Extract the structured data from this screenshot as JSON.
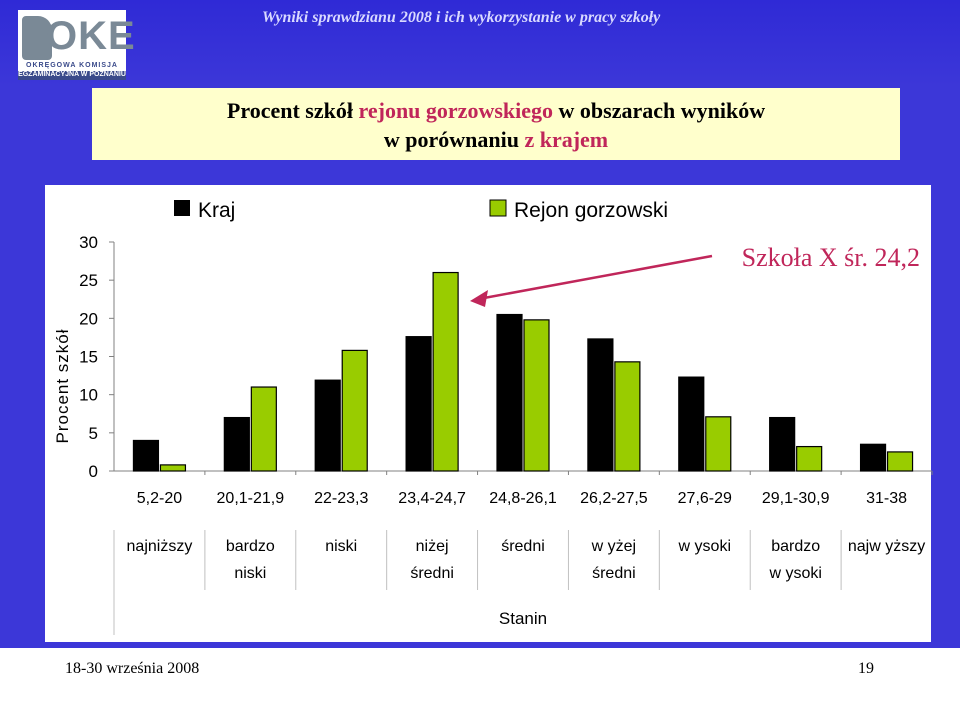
{
  "header": {
    "title": "Wyniki sprawdzianu  2008 i ich wykorzystanie w pracy szkoły",
    "logo_text": "OKE",
    "logo_line1": "OKRĘGOWA KOMISJA",
    "logo_line2": "EGZAMINACYJNA W POZNANIU"
  },
  "slide_title": {
    "line1_a": "Procent szkół ",
    "line1_b": "rejonu gorzowskiego",
    "line1_c": " w obszarach wyników",
    "line2_a": "w porównaniu ",
    "line2_b": "z krajem"
  },
  "chart_data": {
    "type": "bar",
    "ylabel": "Procent szkół",
    "xlabel": "Stanin",
    "ylim": [
      0,
      30
    ],
    "yticks": [
      0,
      5,
      10,
      15,
      20,
      25,
      30
    ],
    "grid": false,
    "legend_position": "top",
    "categories": [
      "5,2-20",
      "20,1-21,9",
      "22-23,3",
      "23,4-24,7",
      "24,8-26,1",
      "26,2-27,5",
      "27,6-29",
      "29,1-30,9",
      "31-38"
    ],
    "stanin_labels": [
      [
        "najniższy"
      ],
      [
        "bardzo",
        "niski"
      ],
      [
        "niski"
      ],
      [
        "niżej",
        "średni"
      ],
      [
        "średni"
      ],
      [
        "w yżej",
        "średni"
      ],
      [
        "w ysoki"
      ],
      [
        "bardzo",
        "w ysoki"
      ],
      [
        "najw yższy"
      ]
    ],
    "series": [
      {
        "name": "Kraj",
        "color": "#000000",
        "values": [
          4.0,
          7.0,
          11.9,
          17.6,
          20.5,
          17.3,
          12.3,
          7.0,
          3.5
        ]
      },
      {
        "name": "Rejon gorzowski",
        "color": "#99cc00",
        "values": [
          0.8,
          11.0,
          15.8,
          26.0,
          19.8,
          14.3,
          7.1,
          3.2,
          2.5
        ]
      }
    ],
    "annotation": {
      "text": "Szkoła X śr. 24,2",
      "color": "#c0265a"
    }
  },
  "footer": {
    "date": "18-30 września 2008",
    "page": "19"
  }
}
